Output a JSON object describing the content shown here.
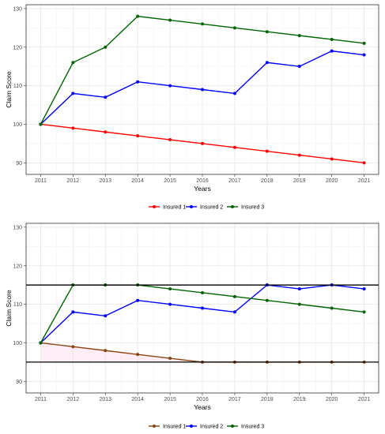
{
  "chart_data": [
    {
      "type": "line",
      "xlabel": "Years",
      "ylabel": "Claim Score",
      "x": [
        2011,
        2012,
        2013,
        2014,
        2015,
        2016,
        2017,
        2018,
        2019,
        2020,
        2021
      ],
      "ylim": [
        87,
        131
      ],
      "yticks": [
        90,
        100,
        110,
        120,
        130
      ],
      "grid": true,
      "legend": "bottom",
      "series": [
        {
          "name": "Insured 1",
          "color": "#ff0000",
          "values": [
            100,
            99,
            98,
            97,
            96,
            95,
            94,
            93,
            92,
            91,
            90
          ]
        },
        {
          "name": "Insured 2",
          "color": "#0000ff",
          "values": [
            100,
            108,
            107,
            111,
            110,
            109,
            108,
            116,
            115,
            119,
            118
          ]
        },
        {
          "name": "Insured 3",
          "color": "#006400",
          "values": [
            100,
            116,
            120,
            128,
            127,
            126,
            125,
            124,
            123,
            122,
            121
          ]
        }
      ]
    },
    {
      "type": "line",
      "xlabel": "Years",
      "ylabel": "Claim Score",
      "x": [
        2011,
        2012,
        2013,
        2014,
        2015,
        2016,
        2017,
        2018,
        2019,
        2020,
        2021
      ],
      "ylim": [
        87,
        131
      ],
      "yticks": [
        90,
        100,
        110,
        120,
        130
      ],
      "grid": true,
      "legend": "bottom",
      "hlines": [
        115,
        95
      ],
      "series": [
        {
          "name": "Insured 1",
          "color": "#8b4513",
          "values": [
            100,
            99,
            98,
            97,
            96,
            95,
            95,
            95,
            95,
            95,
            95
          ]
        },
        {
          "name": "Insured 2",
          "color": "#0000ff",
          "values": [
            100,
            108,
            107,
            111,
            110,
            109,
            108,
            115,
            114,
            115,
            114
          ]
        },
        {
          "name": "Insured 3",
          "color": "#006400",
          "values": [
            100,
            115,
            115,
            115,
            114,
            113,
            112,
            111,
            110,
            109,
            108
          ]
        }
      ]
    }
  ]
}
